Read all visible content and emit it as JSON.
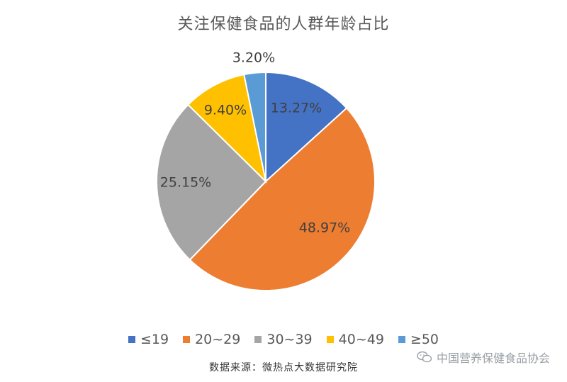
{
  "chart_data": {
    "type": "pie",
    "title": "关注保健食品的人群年龄占比",
    "categories": [
      "≤19",
      "20~29",
      "30~39",
      "40~49",
      "≥50"
    ],
    "values": [
      13.27,
      48.97,
      25.15,
      9.4,
      3.2
    ],
    "labels": [
      "13.27%",
      "48.97%",
      "25.15%",
      "9.40%",
      "3.20%"
    ],
    "colors": [
      "#4472C4",
      "#ED7D31",
      "#A5A5A5",
      "#FFC000",
      "#5B9BD5"
    ],
    "legend_position": "bottom"
  },
  "watermark": {
    "text": "中国营养保健食品协会",
    "icon": "wechat-icon"
  },
  "source": {
    "text": "数据来源：微热点大数据研究院"
  }
}
